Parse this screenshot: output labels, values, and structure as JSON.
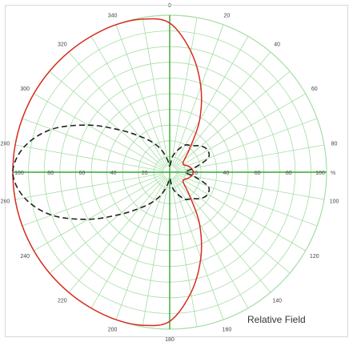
{
  "chart_data": {
    "type": "polar",
    "caption": "Relative Field",
    "radial_unit": "%",
    "radial_range": [
      0,
      100
    ],
    "radial_ticks": [
      20,
      40,
      60,
      80,
      100
    ],
    "angular_ticks": [
      0,
      20,
      40,
      60,
      80,
      100,
      120,
      140,
      160,
      180,
      200,
      220,
      240,
      260,
      280,
      300,
      320,
      340
    ],
    "grid": true,
    "colors": {
      "grid": "#a6dca6",
      "axis": "#33a833",
      "solid": "#d92b1e",
      "dashed": "#222222"
    },
    "series": [
      {
        "style": "solid-red",
        "points": [
          [
            0,
            95
          ],
          [
            10,
            78
          ],
          [
            20,
            58
          ],
          [
            30,
            38
          ],
          [
            40,
            20
          ],
          [
            50,
            12
          ],
          [
            60,
            10
          ],
          [
            70,
            12
          ],
          [
            80,
            14
          ],
          [
            90,
            15
          ],
          [
            100,
            14
          ],
          [
            110,
            12
          ],
          [
            120,
            10
          ],
          [
            130,
            12
          ],
          [
            140,
            20
          ],
          [
            150,
            38
          ],
          [
            160,
            58
          ],
          [
            170,
            78
          ],
          [
            180,
            95
          ],
          [
            190,
            99
          ],
          [
            200,
            100
          ],
          [
            210,
            100
          ],
          [
            220,
            100
          ],
          [
            230,
            100
          ],
          [
            240,
            100
          ],
          [
            250,
            100
          ],
          [
            260,
            100
          ],
          [
            270,
            100
          ],
          [
            280,
            100
          ],
          [
            290,
            100
          ],
          [
            300,
            100
          ],
          [
            310,
            100
          ],
          [
            320,
            100
          ],
          [
            330,
            100
          ],
          [
            340,
            100
          ],
          [
            350,
            99
          ]
        ]
      },
      {
        "style": "dashed-black",
        "points": [
          [
            0,
            4
          ],
          [
            10,
            10
          ],
          [
            20,
            15
          ],
          [
            30,
            20
          ],
          [
            40,
            22
          ],
          [
            50,
            26
          ],
          [
            60,
            28
          ],
          [
            70,
            26
          ],
          [
            80,
            16
          ],
          [
            90,
            10
          ],
          [
            100,
            16
          ],
          [
            110,
            26
          ],
          [
            120,
            28
          ],
          [
            130,
            26
          ],
          [
            140,
            22
          ],
          [
            150,
            20
          ],
          [
            160,
            15
          ],
          [
            170,
            10
          ],
          [
            180,
            4
          ],
          [
            190,
            8
          ],
          [
            200,
            15
          ],
          [
            210,
            22
          ],
          [
            220,
            30
          ],
          [
            230,
            42
          ],
          [
            240,
            60
          ],
          [
            250,
            80
          ],
          [
            260,
            94
          ],
          [
            270,
            100
          ],
          [
            280,
            94
          ],
          [
            290,
            80
          ],
          [
            300,
            60
          ],
          [
            310,
            42
          ],
          [
            320,
            30
          ],
          [
            330,
            22
          ],
          [
            340,
            15
          ],
          [
            350,
            8
          ]
        ]
      }
    ]
  }
}
